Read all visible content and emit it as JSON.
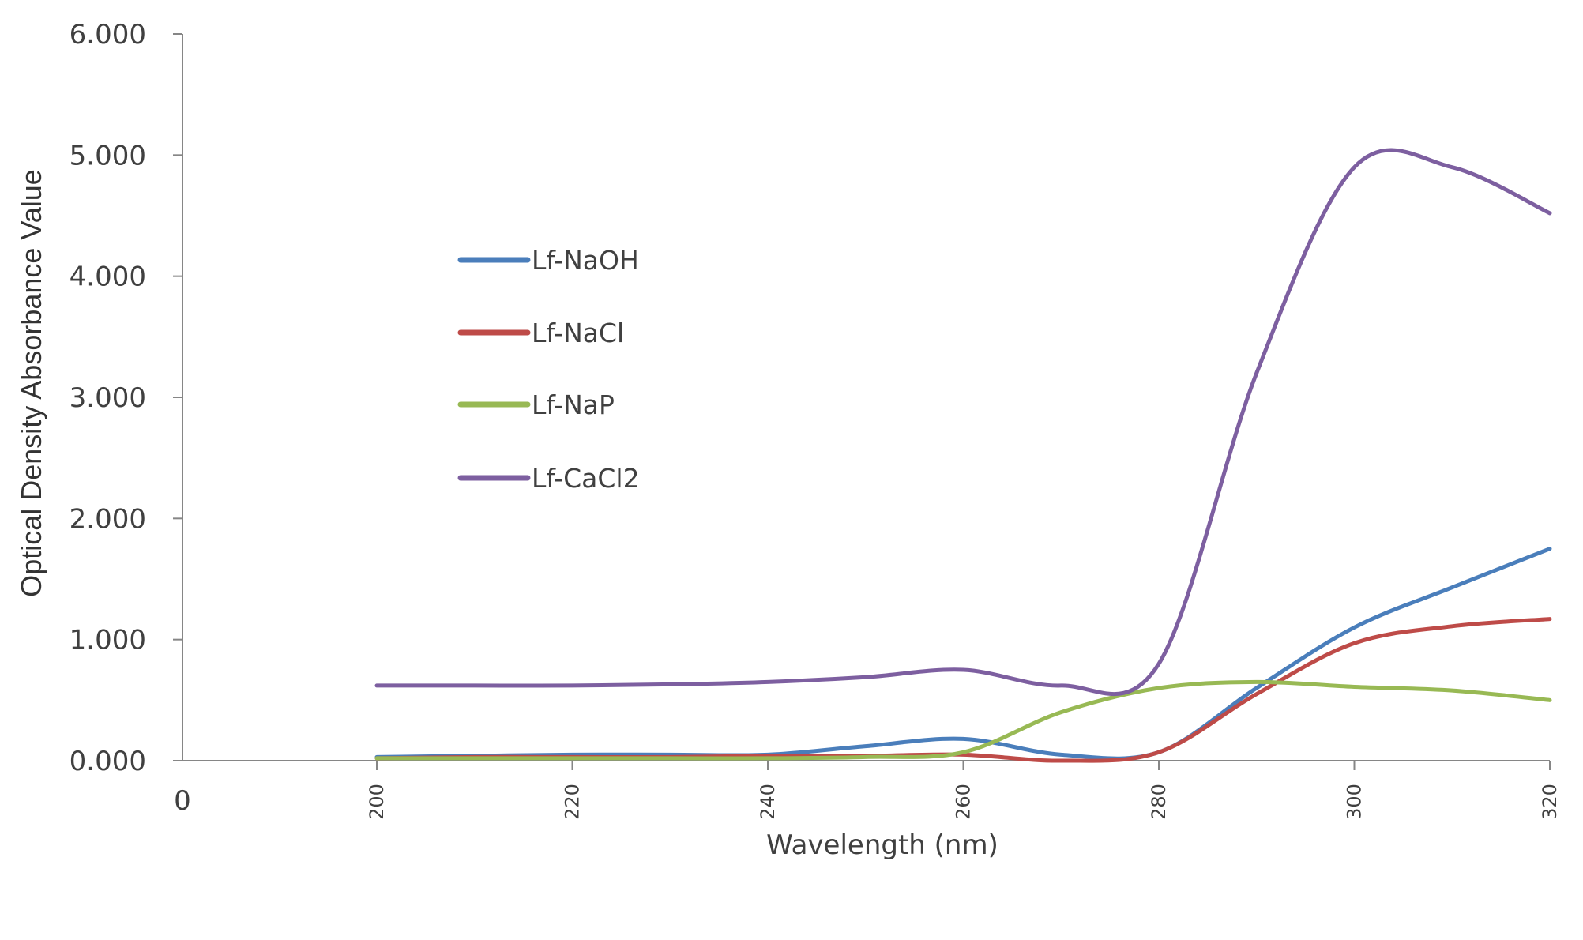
{
  "chart_data": {
    "type": "line",
    "xlabel": "Wavelength (nm)",
    "ylabel": "Optical Density Absorbance Value",
    "ylim": [
      0,
      6
    ],
    "yticks": [
      "0.000",
      "1.000",
      "2.000",
      "3.000",
      "4.000",
      "5.000",
      "6.000"
    ],
    "xticks": [
      "0",
      "200",
      "220",
      "240",
      "260",
      "280",
      "300",
      "320"
    ],
    "x_tick_labels_printed": [
      "200",
      "220",
      "240",
      "260",
      "280",
      "300",
      "320"
    ],
    "x_tick_values": [
      200,
      220,
      240,
      260,
      280,
      300,
      320
    ],
    "x_origin_label": "0",
    "x": [
      200,
      210,
      220,
      230,
      240,
      250,
      260,
      270,
      280,
      290,
      300,
      310,
      320
    ],
    "series": [
      {
        "name": "Lf-NaOH",
        "color": "#4a7ebb",
        "values": [
          0.03,
          0.04,
          0.05,
          0.05,
          0.05,
          0.12,
          0.18,
          0.05,
          0.07,
          0.6,
          1.1,
          1.43,
          1.75
        ]
      },
      {
        "name": "Lf-NaCl",
        "color": "#be4b48",
        "values": [
          0.02,
          0.03,
          0.03,
          0.03,
          0.04,
          0.04,
          0.05,
          0.0,
          0.07,
          0.55,
          0.97,
          1.11,
          1.17
        ]
      },
      {
        "name": "Lf-NaP",
        "color": "#98b954",
        "values": [
          0.02,
          0.02,
          0.02,
          0.02,
          0.02,
          0.03,
          0.07,
          0.4,
          0.6,
          0.65,
          0.61,
          0.58,
          0.5
        ]
      },
      {
        "name": "Lf-CaCl2",
        "color": "#7d5fa0",
        "values": [
          0.62,
          0.62,
          0.62,
          0.63,
          0.65,
          0.69,
          0.75,
          0.62,
          0.8,
          3.2,
          4.9,
          4.9,
          4.52
        ]
      }
    ],
    "legend_position": "upper-left inside plot",
    "grid": false
  }
}
